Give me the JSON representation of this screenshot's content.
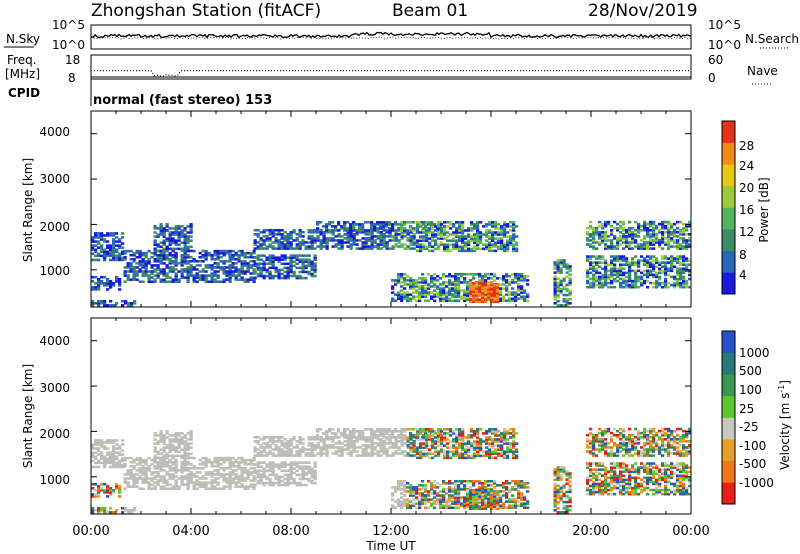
{
  "header": {
    "station": "Zhongshan Station (fitACF)",
    "beam": "Beam 01",
    "date": "28/Nov/2019"
  },
  "noise_panel": {
    "left_label": "N.Sky",
    "right_label": "N.Search",
    "left_ticks": [
      "10^5",
      "10^0"
    ],
    "right_ticks": [
      "10^5",
      "10^0"
    ]
  },
  "freq_panel": {
    "left_label_1": "Freq.",
    "left_label_2": "[MHz]",
    "right_label": "Nave",
    "left_ticks": [
      "18",
      "8"
    ],
    "right_ticks": [
      "60",
      "0"
    ]
  },
  "cpid": {
    "label": "CPID",
    "text": "normal (fast stereo) 153"
  },
  "xaxis": {
    "title": "Time UT",
    "ticks": [
      "00:00",
      "04:00",
      "08:00",
      "12:00",
      "16:00",
      "20:00",
      "00:00"
    ]
  },
  "power_panel": {
    "ylabel": "Slant Range [km]",
    "yticks": [
      "4000",
      "3000",
      "2000",
      "1000"
    ],
    "colorbar_title": "Power [dB]",
    "colorbar_ticks": [
      "28",
      "24",
      "20",
      "16",
      "12",
      "8",
      "4"
    ]
  },
  "velocity_panel": {
    "ylabel": "Slant Range [km]",
    "yticks": [
      "4000",
      "3000",
      "2000",
      "1000"
    ],
    "colorbar_title": "Velocity [m s",
    "colorbar_sup": "-1",
    "colorbar_close": "]",
    "colorbar_ticks": [
      "1000",
      "500",
      "100",
      "25",
      "-25",
      "-100",
      "-500",
      "-1000"
    ]
  },
  "colors": {
    "power_scale": [
      "#1a1adc",
      "#2868b4",
      "#3c8c64",
      "#50b45a",
      "#a0c83c",
      "#e6c814",
      "#f08c14",
      "#e63214"
    ],
    "velocity_scale": [
      "#2850c8",
      "#287878",
      "#3c9650",
      "#5ac832",
      "#c8c8c0",
      "#e6a028",
      "#f07814",
      "#e61e14"
    ],
    "ground_scatter": "#bebeb6"
  },
  "chart_data": {
    "type": "heatmap",
    "x_range_hours": [
      0,
      24
    ],
    "y_range_km": [
      180,
      4500
    ],
    "power_db_range": [
      0,
      32
    ],
    "velocity_range_ms": [
      -1200,
      1200
    ],
    "scatter_bands": [
      {
        "t0": 0.0,
        "t1": 1.3,
        "r0": 1200,
        "r1": 1800
      },
      {
        "t0": 0.0,
        "t1": 1.2,
        "r0": 550,
        "r1": 850
      },
      {
        "t0": 0.0,
        "t1": 1.8,
        "r0": 200,
        "r1": 330
      },
      {
        "t0": 1.3,
        "t1": 6.5,
        "r0": 720,
        "r1": 1400
      },
      {
        "t0": 2.5,
        "t1": 4.0,
        "r0": 1400,
        "r1": 2000
      },
      {
        "t0": 6.5,
        "t1": 13.0,
        "r0": 1450,
        "r1": 1900
      },
      {
        "t0": 6.5,
        "t1": 9.0,
        "r0": 800,
        "r1": 1300
      },
      {
        "t0": 9.0,
        "t1": 14.0,
        "r0": 1850,
        "r1": 2050
      },
      {
        "t0": 12.0,
        "t1": 17.5,
        "r0": 300,
        "r1": 900
      },
      {
        "t0": 13.0,
        "t1": 17.0,
        "r0": 1400,
        "r1": 2050
      },
      {
        "t0": 15.0,
        "t1": 16.3,
        "r0": 280,
        "r1": 700
      },
      {
        "t0": 18.5,
        "t1": 19.2,
        "r0": 200,
        "r1": 1200
      },
      {
        "t0": 19.8,
        "t1": 24.0,
        "r0": 1450,
        "r1": 2050
      },
      {
        "t0": 19.8,
        "t1": 24.0,
        "r0": 600,
        "r1": 1300
      }
    ],
    "freq_mhz_trace": {
      "typical": 11.5,
      "dip_t0": 2.5,
      "dip_t1": 3.5,
      "dip_value": 9.2
    },
    "noise_trace": {
      "typical_log": 1.2
    }
  }
}
